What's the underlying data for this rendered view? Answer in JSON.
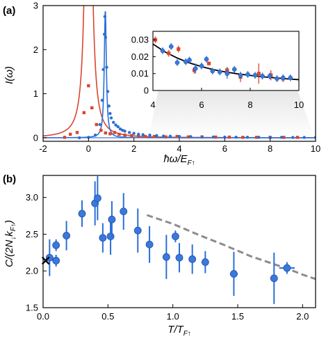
{
  "panel_a": {
    "label": "(a)",
    "xlabel": "ħω/E",
    "xlabel_sub": "F↑",
    "ylabel": "I(ω)",
    "xticks": [
      "-2",
      "0",
      "2",
      "4",
      "6",
      "8",
      "10"
    ],
    "yticks": [
      "0",
      "1",
      "2",
      "3"
    ]
  },
  "inset": {
    "xticks": [
      "4",
      "6",
      "8",
      "10"
    ],
    "yticks": [
      "0",
      "0.01",
      "0.02",
      "0.03"
    ]
  },
  "panel_b": {
    "label": "(b)",
    "ylabel": "C/(2N",
    "ylabel_sub1": "↓",
    "ylabel_mid": "k",
    "ylabel_sub2": "F↑",
    "ylabel_end": ")",
    "xlabel": "T/T",
    "xlabel_sub": "F↑",
    "xticks": [
      "0.0",
      "0.5",
      "1.0",
      "1.5",
      "2.0"
    ],
    "yticks": [
      "1.5",
      "2.0",
      "2.5",
      "3.0"
    ]
  },
  "colors": {
    "red": "#d9452f",
    "blue": "#2a6fd6",
    "blue_marker": "#3a78dc",
    "theory": "#8c8c8c",
    "fit": "#000000"
  },
  "chart_data": [
    {
      "type": "line",
      "panel": "a",
      "xlim": [
        -2,
        10
      ],
      "ylim": [
        -0.08,
        3
      ],
      "grid": false,
      "series": [
        {
          "color": "red",
          "marker": "square",
          "x": [
            -1.05,
            -0.8,
            -0.5,
            -0.2,
            0.0,
            0.15,
            0.35,
            0.55,
            0.75,
            0.95,
            1.15,
            1.35,
            1.6,
            1.9,
            2.2,
            2.5,
            2.9,
            3.4,
            3.9,
            4.4,
            5.0,
            5.6,
            6.2,
            6.8,
            7.4,
            8.0,
            8.6,
            9.2
          ],
          "y": [
            0.01,
            0.08,
            0.12,
            0.57,
            1.18,
            0.68,
            0.3,
            0.17,
            0.11,
            0.09,
            0.12,
            0.08,
            0.06,
            0.05,
            0.04,
            0.03,
            0.03,
            0.02,
            0.03,
            0.02,
            0.02,
            0.015,
            0.015,
            0.01,
            0.01,
            0.01,
            0.01,
            0.01
          ]
        },
        {
          "color": "blue",
          "marker": "circle",
          "x": [
            -0.4,
            0.0,
            0.3,
            0.5,
            0.6,
            0.65,
            0.7,
            0.72,
            0.75,
            0.8,
            0.85,
            0.9,
            0.95,
            1.0,
            1.1,
            1.2,
            1.3,
            1.4,
            1.5,
            1.6,
            1.8,
            2.0,
            2.2,
            2.4,
            2.7,
            3.0,
            3.3,
            3.6,
            4.0,
            4.5,
            5.0,
            5.5,
            6.0,
            6.5,
            7.0,
            7.5,
            8.0,
            8.5,
            9.0,
            9.5,
            10.0
          ],
          "y": [
            0.0,
            0.01,
            0.06,
            0.3,
            0.85,
            1.55,
            2.35,
            2.75,
            2.28,
            1.6,
            1.05,
            0.72,
            0.55,
            0.45,
            0.35,
            0.29,
            0.25,
            0.2,
            0.17,
            0.15,
            0.12,
            0.1,
            0.08,
            0.07,
            0.06,
            0.05,
            0.04,
            0.035,
            0.03,
            0.025,
            0.02,
            0.018,
            0.015,
            0.013,
            0.012,
            0.011,
            0.01,
            0.009,
            0.008,
            0.008,
            0.007
          ]
        }
      ]
    },
    {
      "type": "scatter",
      "panel": "a-inset",
      "xlim": [
        4,
        10
      ],
      "ylim": [
        0,
        0.035
      ],
      "grid": false,
      "fit_curve": {
        "color": "fit",
        "x": [
          4.0,
          4.5,
          5.0,
          5.5,
          6.0,
          6.5,
          7.0,
          7.5,
          8.0,
          8.5,
          9.0,
          9.5,
          10.0
        ],
        "y": [
          0.0275,
          0.0228,
          0.0192,
          0.0163,
          0.0141,
          0.0123,
          0.0109,
          0.0098,
          0.0089,
          0.0081,
          0.0075,
          0.0069,
          0.0064
        ]
      },
      "series": [
        {
          "color": "red",
          "marker": "square",
          "x": [
            4.1,
            4.65,
            5.05,
            5.7,
            6.3,
            7.05,
            7.6,
            8.35,
            8.85,
            9.35
          ],
          "y": [
            0.03,
            0.022,
            0.0245,
            0.012,
            0.016,
            0.012,
            0.008,
            0.01,
            0.009,
            0.007
          ],
          "yerr": [
            0.002,
            0.002,
            0.002,
            0.002,
            0.001,
            0.002,
            0.003,
            0.006,
            0.003,
            0.002
          ]
        },
        {
          "color": "blue",
          "marker": "circle",
          "x": [
            4.4,
            4.75,
            5.0,
            5.35,
            5.5,
            5.75,
            6.0,
            6.2,
            6.45,
            6.75,
            7.05,
            7.35,
            7.6,
            7.9,
            8.2,
            8.5,
            8.8,
            9.1,
            9.35,
            9.65
          ],
          "y": [
            0.0235,
            0.026,
            0.0165,
            0.017,
            0.018,
            0.013,
            0.0145,
            0.0185,
            0.0115,
            0.011,
            0.01,
            0.0125,
            0.009,
            0.0095,
            0.009,
            0.0085,
            0.0085,
            0.007,
            0.0075,
            0.0075
          ],
          "yerr": [
            0.002,
            0.002,
            0.002,
            0.002,
            0.002,
            0.003,
            0.002,
            0.002,
            0.002,
            0.002,
            0.003,
            0.002,
            0.002,
            0.002,
            0.002,
            0.002,
            0.002,
            0.002,
            0.002,
            0.002
          ]
        }
      ]
    },
    {
      "type": "scatter",
      "panel": "b",
      "xlim": [
        0,
        2.1
      ],
      "ylim": [
        1.5,
        3.3
      ],
      "grid": false,
      "cross_marker": {
        "x": 0.02,
        "y": 2.14
      },
      "theory_curve": {
        "color": "theory",
        "dashed": true,
        "x": [
          0.8,
          1.0,
          1.2,
          1.4,
          1.6,
          1.8,
          1.9,
          2.0,
          2.1
        ],
        "y": [
          2.76,
          2.64,
          2.49,
          2.35,
          2.2,
          2.08,
          2.02,
          1.95,
          1.89
        ]
      },
      "series": [
        {
          "color": "blue",
          "marker": "circle",
          "x": [
            0.05,
            0.1,
            0.1,
            0.18,
            0.3,
            0.4,
            0.42,
            0.46,
            0.52,
            0.53,
            0.62,
            0.73,
            0.82,
            0.95,
            1.02,
            1.05,
            1.15,
            1.25,
            1.47,
            1.78,
            1.88
          ],
          "y": [
            2.18,
            2.14,
            2.35,
            2.48,
            2.78,
            2.92,
            2.99,
            2.45,
            2.47,
            2.7,
            2.81,
            2.55,
            2.36,
            2.19,
            2.47,
            2.18,
            2.16,
            2.12,
            1.96,
            1.9,
            2.04
          ],
          "yerr": [
            0.25,
            0.08,
            0.08,
            0.2,
            0.18,
            0.3,
            0.3,
            0.2,
            0.25,
            0.25,
            0.25,
            0.3,
            0.25,
            0.3,
            0.08,
            0.2,
            0.2,
            0.15,
            0.3,
            0.35,
            0.08
          ],
          "xerr": [
            0,
            0,
            0,
            0,
            0,
            0,
            0,
            0,
            0,
            0,
            0,
            0,
            0,
            0,
            0,
            0,
            0,
            0,
            0.03,
            0,
            0.06
          ]
        }
      ]
    }
  ]
}
